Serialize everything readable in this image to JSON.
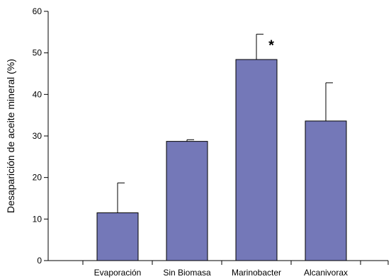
{
  "chart_data": {
    "type": "bar",
    "categories": [
      "Evaporación",
      "Sin Biomasa",
      "Marinobacter",
      "Alcanivorax"
    ],
    "values": [
      11.5,
      28.7,
      48.4,
      33.6
    ],
    "error_plus": [
      7.2,
      0.4,
      6.1,
      9.2
    ],
    "ylabel": "Desaparición de aceite mineral (%)",
    "xlabel": "",
    "ylim": [
      0,
      60
    ],
    "yticks": [
      0,
      10,
      20,
      30,
      40,
      50,
      60
    ],
    "grid": false,
    "legend": "none",
    "annotation": {
      "text": "*",
      "category": "Marinobacter"
    },
    "colors": {
      "bar_fill": "#7478b8",
      "bar_stroke": "#000000",
      "axis": "#000000"
    }
  }
}
